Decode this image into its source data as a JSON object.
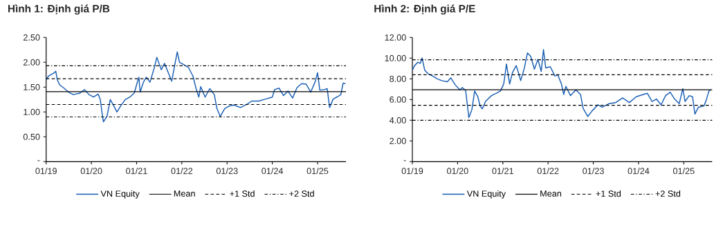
{
  "chart_data": [
    {
      "type": "line",
      "title": "Hình 1: Định giá P/B",
      "legend": "bottom",
      "line_style": "solid",
      "xlim": [
        "2019-01-01",
        "2025-08-18"
      ],
      "ylim": [
        0,
        2.5
      ],
      "xticks": [
        {
          "value": "2019-01-01",
          "label": "01/19"
        },
        {
          "value": "2020-01-01",
          "label": "01/20"
        },
        {
          "value": "2021-01-01",
          "label": "01/21"
        },
        {
          "value": "2022-01-01",
          "label": "01/22"
        },
        {
          "value": "2023-01-01",
          "label": "01/23"
        },
        {
          "value": "2024-01-01",
          "label": "01/24"
        },
        {
          "value": "2025-01-01",
          "label": "01/25"
        }
      ],
      "yticks": [
        {
          "value": 0,
          "label": "-"
        },
        {
          "value": 0.5,
          "label": "0.50"
        },
        {
          "value": 1,
          "label": "1.00"
        },
        {
          "value": 1.5,
          "label": "1.50"
        },
        {
          "value": 2,
          "label": "2.00"
        },
        {
          "value": 2.5,
          "label": "2.50"
        }
      ],
      "series": [
        {
          "name": "VN Equity",
          "color": "#1a5fb4",
          "x": [
            "2019-01-01",
            "2019-01-19",
            "2019-02-07",
            "2019-03-02",
            "2019-03-20",
            "2019-04-01",
            "2019-04-19",
            "2019-05-25",
            "2019-07-01",
            "2019-08-07",
            "2019-10-01",
            "2019-11-07",
            "2019-12-13",
            "2020-01-19",
            "2020-02-25",
            "2020-03-13",
            "2020-04-01",
            "2020-04-08",
            "2020-05-07",
            "2020-06-02",
            "2020-07-01",
            "2020-07-26",
            "2020-08-25",
            "2020-10-01",
            "2020-11-07",
            "2020-12-13",
            "2021-01-01",
            "2021-01-19",
            "2021-01-30",
            "2021-02-25",
            "2021-03-20",
            "2021-04-19",
            "2021-05-25",
            "2021-06-13",
            "2021-07-19",
            "2021-08-14",
            "2021-09-20",
            "2021-10-11",
            "2021-11-25",
            "2021-12-13",
            "2022-01-19",
            "2022-02-25",
            "2022-04-01",
            "2022-04-26",
            "2022-05-18",
            "2022-06-02",
            "2022-07-08",
            "2022-08-14",
            "2022-09-20",
            "2022-10-11",
            "2022-11-07",
            "2022-12-13",
            "2023-01-19",
            "2023-02-25",
            "2023-04-19",
            "2023-06-13",
            "2023-07-19",
            "2023-09-13",
            "2023-11-07",
            "2024-01-01",
            "2024-01-19",
            "2024-02-25",
            "2024-04-01",
            "2024-05-07",
            "2024-06-13",
            "2024-07-19",
            "2024-08-25",
            "2024-10-01",
            "2024-11-07",
            "2024-12-13",
            "2025-01-01",
            "2025-01-19",
            "2025-02-25",
            "2025-03-20",
            "2025-04-08",
            "2025-05-07",
            "2025-06-13",
            "2025-07-08",
            "2025-07-26",
            "2025-08-14"
          ],
          "values": [
            1.65,
            1.72,
            1.75,
            1.78,
            1.82,
            1.65,
            1.55,
            1.48,
            1.4,
            1.35,
            1.38,
            1.45,
            1.35,
            1.3,
            1.36,
            1.25,
            0.9,
            0.8,
            0.92,
            1.25,
            1.12,
            1.0,
            1.12,
            1.25,
            1.3,
            1.38,
            1.55,
            1.7,
            1.4,
            1.6,
            1.7,
            1.6,
            1.9,
            2.1,
            1.85,
            1.98,
            1.75,
            1.62,
            2.21,
            2.0,
            1.95,
            1.89,
            1.72,
            1.47,
            1.3,
            1.51,
            1.3,
            1.47,
            1.35,
            1.07,
            0.91,
            1.07,
            1.12,
            1.14,
            1.09,
            1.16,
            1.22,
            1.22,
            1.26,
            1.3,
            1.45,
            1.48,
            1.33,
            1.42,
            1.28,
            1.49,
            1.57,
            1.56,
            1.4,
            1.61,
            1.79,
            1.44,
            1.45,
            1.47,
            1.09,
            1.26,
            1.31,
            1.35,
            1.58,
            1.57
          ]
        }
      ],
      "ref_lines": [
        {
          "axis": "y",
          "value": 1.41,
          "label": "Mean",
          "color": "#000000",
          "line_style": "solid"
        },
        {
          "axis": "y",
          "value": 1.67,
          "label": "+1 Std",
          "color": "#000000",
          "line_style": "dashed"
        },
        {
          "axis": "y",
          "value": 1.93,
          "label": "+2 Std",
          "color": "#000000",
          "line_style": "dashdot"
        },
        {
          "axis": "y",
          "value": 1.15,
          "color": "#000000",
          "line_style": "dashed"
        },
        {
          "axis": "y",
          "value": 0.9,
          "color": "#000000",
          "line_style": "dashdot"
        }
      ]
    },
    {
      "type": "line",
      "title": "Hình 2: Định giá P/E",
      "legend": "bottom",
      "line_style": "solid",
      "xlim": [
        "2019-01-01",
        "2025-08-18"
      ],
      "ylim": [
        0,
        12
      ],
      "xticks": [
        {
          "value": "2019-01-01",
          "label": "01/19"
        },
        {
          "value": "2020-01-01",
          "label": "01/20"
        },
        {
          "value": "2021-01-01",
          "label": "01/21"
        },
        {
          "value": "2022-01-01",
          "label": "01/22"
        },
        {
          "value": "2023-01-01",
          "label": "01/23"
        },
        {
          "value": "2024-01-01",
          "label": "01/24"
        },
        {
          "value": "2025-01-01",
          "label": "01/25"
        }
      ],
      "yticks": [
        {
          "value": 0,
          "label": "-"
        },
        {
          "value": 2,
          "label": "2.00"
        },
        {
          "value": 4,
          "label": "4.00"
        },
        {
          "value": 6,
          "label": "6.00"
        },
        {
          "value": 8,
          "label": "8.00"
        },
        {
          "value": 10,
          "label": "10.00"
        },
        {
          "value": 12,
          "label": "12.00"
        }
      ],
      "series": [
        {
          "name": "VN Equity",
          "color": "#1a5fb4",
          "x": [
            "2019-01-01",
            "2019-01-19",
            "2019-02-14",
            "2019-03-06",
            "2019-03-20",
            "2019-04-11",
            "2019-05-07",
            "2019-06-13",
            "2019-07-19",
            "2019-08-25",
            "2019-10-11",
            "2019-11-07",
            "2019-12-13",
            "2020-01-19",
            "2020-02-07",
            "2020-03-06",
            "2020-03-20",
            "2020-04-01",
            "2020-04-26",
            "2020-05-18",
            "2020-06-13",
            "2020-07-01",
            "2020-07-19",
            "2020-08-14",
            "2020-10-01",
            "2020-11-07",
            "2020-12-13",
            "2021-01-08",
            "2021-01-19",
            "2021-01-30",
            "2021-02-25",
            "2021-03-20",
            "2021-04-19",
            "2021-05-07",
            "2021-05-25",
            "2021-06-24",
            "2021-07-19",
            "2021-08-14",
            "2021-09-13",
            "2021-10-11",
            "2021-11-07",
            "2021-11-25",
            "2021-12-13",
            "2022-01-19",
            "2022-02-25",
            "2022-03-20",
            "2022-04-19",
            "2022-05-07",
            "2022-05-25",
            "2022-07-01",
            "2022-08-14",
            "2022-09-20",
            "2022-10-11",
            "2022-11-18",
            "2022-12-24",
            "2023-02-07",
            "2023-03-13",
            "2023-05-07",
            "2023-07-01",
            "2023-08-25",
            "2023-10-19",
            "2023-12-13",
            "2024-02-07",
            "2024-03-13",
            "2024-04-19",
            "2024-05-25",
            "2024-07-01",
            "2024-08-07",
            "2024-09-13",
            "2024-10-19",
            "2024-11-25",
            "2024-12-24",
            "2025-01-12",
            "2025-02-14",
            "2025-03-13",
            "2025-04-01",
            "2025-04-29",
            "2025-06-13",
            "2025-07-01",
            "2025-07-23",
            "2025-08-07"
          ],
          "values": [
            8.83,
            9.28,
            9.61,
            9.5,
            10.02,
            8.83,
            8.5,
            8.28,
            8.01,
            7.83,
            7.72,
            8.1,
            7.43,
            6.94,
            7.16,
            6.89,
            5.49,
            4.26,
            5.04,
            6.83,
            6.27,
            5.38,
            5.11,
            5.82,
            6.38,
            6.6,
            6.83,
            7.5,
            8.39,
            9.44,
            7.5,
            8.61,
            9.28,
            8.61,
            7.83,
            9.06,
            10.51,
            10.17,
            8.94,
            9.88,
            8.72,
            10.84,
            9.06,
            9.17,
            8.28,
            8.39,
            7.5,
            6.49,
            7.27,
            6.38,
            6.94,
            6.49,
            5.15,
            4.37,
            4.93,
            5.49,
            5.26,
            5.6,
            5.71,
            6.16,
            5.71,
            6.27,
            6.49,
            6.6,
            5.82,
            6.05,
            5.49,
            6.38,
            6.71,
            6.05,
            5.6,
            7.05,
            5.82,
            6.38,
            6.27,
            4.6,
            5.26,
            5.38,
            5.93,
            6.83,
            6.94
          ]
        }
      ],
      "ref_lines": [
        {
          "axis": "y",
          "value": 6.94,
          "label": "Mean",
          "color": "#000000",
          "line_style": "solid"
        },
        {
          "axis": "y",
          "value": 8.39,
          "label": "+1 Std",
          "color": "#000000",
          "line_style": "dashed"
        },
        {
          "axis": "y",
          "value": 9.84,
          "label": "+2 Std",
          "color": "#000000",
          "line_style": "dashdot"
        },
        {
          "axis": "y",
          "value": 5.44,
          "color": "#000000",
          "line_style": "dashed"
        },
        {
          "axis": "y",
          "value": 3.99,
          "color": "#000000",
          "line_style": "dashdot"
        }
      ]
    }
  ]
}
